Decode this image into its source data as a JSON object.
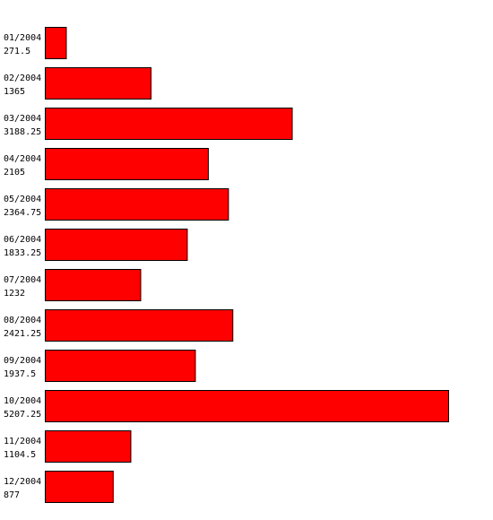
{
  "chart_data": {
    "type": "bar",
    "orientation": "horizontal",
    "color": "#ff0000",
    "categories": [
      "01/2004",
      "02/2004",
      "03/2004",
      "04/2004",
      "05/2004",
      "06/2004",
      "07/2004",
      "08/2004",
      "09/2004",
      "10/2004",
      "11/2004",
      "12/2004"
    ],
    "values": [
      271.5,
      1365,
      3188.25,
      2105,
      2364.75,
      1833.25,
      1232,
      2421.25,
      1937.5,
      5207.25,
      1104.5,
      877
    ]
  }
}
